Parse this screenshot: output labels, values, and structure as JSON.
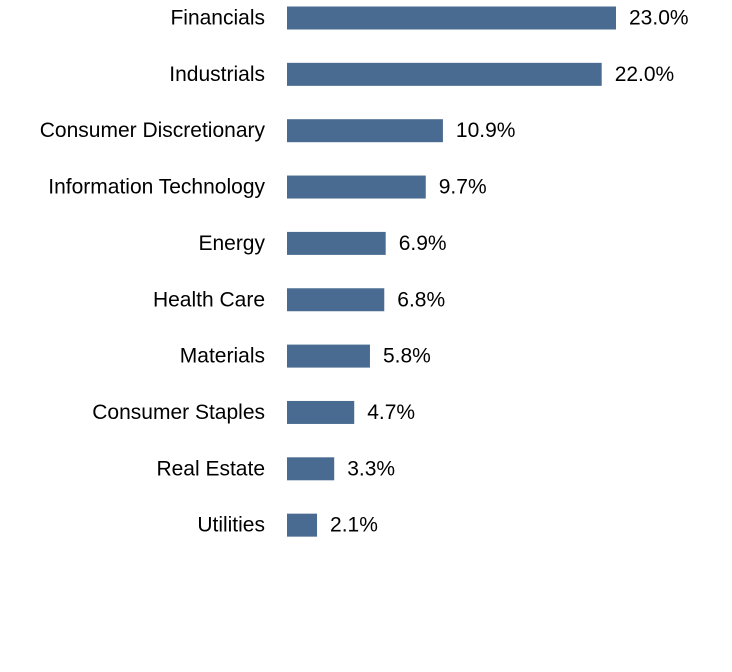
{
  "chart_data": {
    "type": "barh",
    "categories": [
      "Financials",
      "Industrials",
      "Consumer Discretionary",
      "Information Technology",
      "Energy",
      "Health Care",
      "Materials",
      "Consumer Staples",
      "Real Estate",
      "Utilities"
    ],
    "values": [
      23.0,
      22.0,
      10.9,
      9.7,
      6.9,
      6.8,
      5.8,
      4.7,
      3.3,
      2.1
    ],
    "value_labels": [
      "23.0%",
      "22.0%",
      "10.9%",
      "9.7%",
      "6.9%",
      "6.8%",
      "5.8%",
      "4.7%",
      "3.3%",
      "2.1%"
    ],
    "color": "#4a6b91"
  }
}
